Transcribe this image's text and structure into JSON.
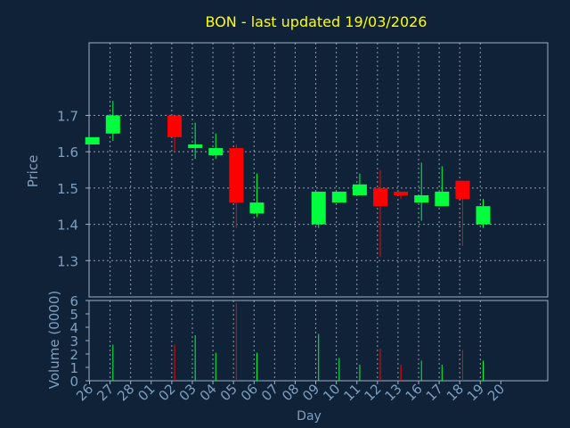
{
  "chart_data": {
    "type": "candlestick",
    "title": "BON - last updated 19/03/2026",
    "xlabel": "Day",
    "price_panel": {
      "ylabel": "Price",
      "ylim": [
        1.2,
        1.9
      ],
      "yticks": [
        "1.3",
        "1.4",
        "1.5",
        "1.6",
        "1.7"
      ],
      "ytick_values": [
        1.3,
        1.4,
        1.5,
        1.6,
        1.7
      ]
    },
    "volume_panel": {
      "ylabel": "Volume (0000)",
      "ylim": [
        0,
        6
      ],
      "yticks": [
        "0",
        "1",
        "2",
        "3",
        "4",
        "5",
        "6"
      ],
      "ytick_values": [
        0,
        1,
        2,
        3,
        4,
        5,
        6
      ]
    },
    "x_ticks": [
      "26",
      "27",
      "28",
      "01",
      "02",
      "03",
      "04",
      "05",
      "06",
      "07",
      "08",
      "09",
      "10",
      "11",
      "12",
      "13",
      "16",
      "17",
      "18",
      "19",
      "20"
    ],
    "candles": [
      {
        "day": "26",
        "open": 1.62,
        "close": 1.64,
        "high": 1.64,
        "low": 1.62,
        "volume": 0
      },
      {
        "day": "27",
        "open": 1.65,
        "close": 1.7,
        "high": 1.74,
        "low": 1.63,
        "volume": 2.7
      },
      {
        "day": "02",
        "open": 1.7,
        "close": 1.64,
        "high": 1.7,
        "low": 1.6,
        "volume": 2.7
      },
      {
        "day": "03",
        "open": 1.61,
        "close": 1.62,
        "high": 1.68,
        "low": 1.58,
        "volume": 3.4
      },
      {
        "day": "04",
        "open": 1.59,
        "close": 1.61,
        "high": 1.65,
        "low": 1.58,
        "volume": 2.1
      },
      {
        "day": "05",
        "open": 1.61,
        "close": 1.46,
        "high": 1.62,
        "low": 1.39,
        "volume": 5.8
      },
      {
        "day": "06",
        "open": 1.43,
        "close": 1.46,
        "high": 1.54,
        "low": 1.42,
        "volume": 2.1
      },
      {
        "day": "09",
        "open": 1.4,
        "close": 1.49,
        "high": 1.49,
        "low": 1.39,
        "volume": 3.5
      },
      {
        "day": "10",
        "open": 1.46,
        "close": 1.49,
        "high": 1.49,
        "low": 1.46,
        "volume": 1.7
      },
      {
        "day": "11",
        "open": 1.48,
        "close": 1.51,
        "high": 1.54,
        "low": 1.48,
        "volume": 1.2
      },
      {
        "day": "12",
        "open": 1.5,
        "close": 1.45,
        "high": 1.55,
        "low": 1.31,
        "volume": 2.4
      },
      {
        "day": "13",
        "open": 1.49,
        "close": 1.48,
        "high": 1.49,
        "low": 1.47,
        "volume": 1.2
      },
      {
        "day": "16",
        "open": 1.46,
        "close": 1.48,
        "high": 1.57,
        "low": 1.41,
        "volume": 1.5
      },
      {
        "day": "17",
        "open": 1.45,
        "close": 1.49,
        "high": 1.56,
        "low": 1.45,
        "volume": 1.2
      },
      {
        "day": "18",
        "open": 1.52,
        "close": 1.47,
        "high": 1.52,
        "low": 1.34,
        "volume": 2.3
      },
      {
        "day": "19",
        "open": 1.4,
        "close": 1.45,
        "high": 1.47,
        "low": 1.39,
        "volume": 1.5
      }
    ],
    "grid": true,
    "colors": {
      "background": "#0f2238",
      "plot_background": "#0f2238",
      "title": "#ffff00",
      "axis_text": "#7f9fbf",
      "frame": "#9fb0c8",
      "grid": "#c8d0dc",
      "up": "#00ff3c",
      "down": "#ff0000"
    }
  }
}
